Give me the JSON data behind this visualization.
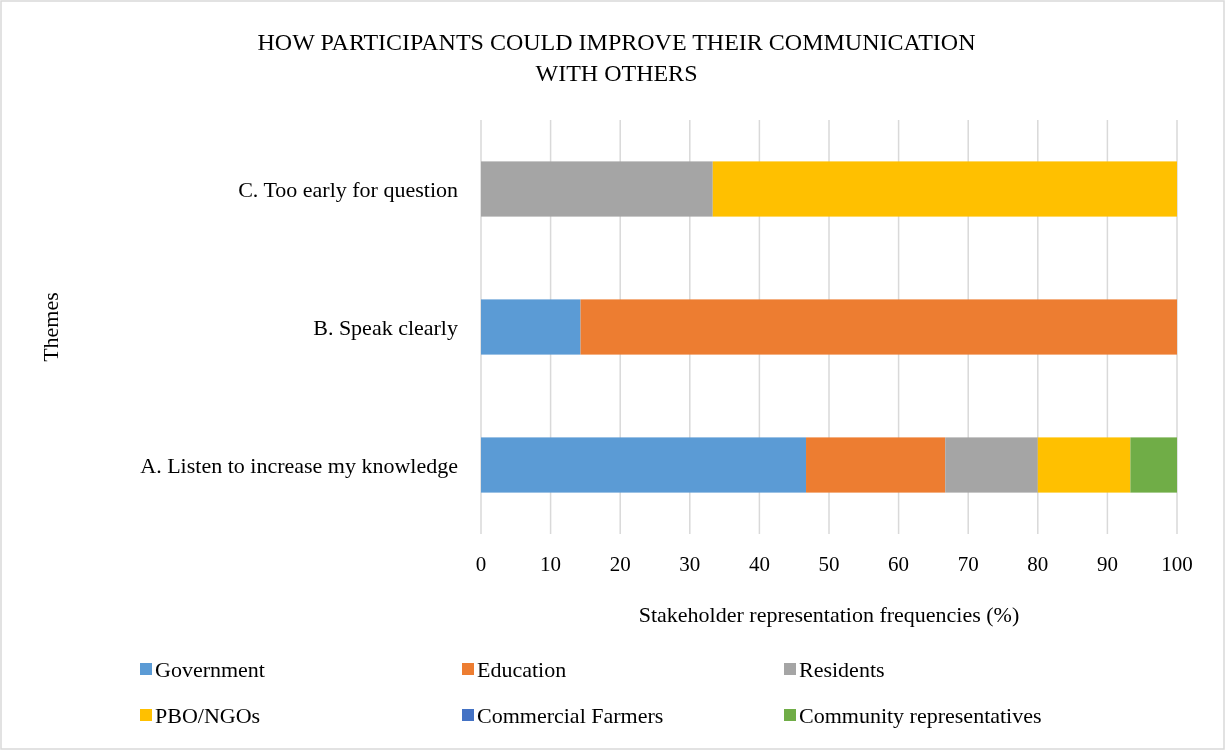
{
  "chart_data": {
    "type": "bar",
    "orientation": "horizontal",
    "stacked": true,
    "title": "HOW PARTICIPANTS COULD IMPROVE THEIR COMMUNICATION WITH OTHERS",
    "xlabel": "Stakeholder representation frequencies (%)",
    "ylabel": "Themes",
    "categories": [
      "C. Too early for question",
      "B. Speak clearly",
      "A. Listen to increase my knowledge"
    ],
    "series": [
      {
        "name": "Government",
        "color": "#5b9bd5",
        "values": [
          null,
          14.3,
          46.7
        ]
      },
      {
        "name": "Education",
        "color": "#ed7d31",
        "values": [
          null,
          85.7,
          20
        ]
      },
      {
        "name": "Residents",
        "color": "#a5a5a5",
        "values": [
          33.3,
          null,
          13.3
        ]
      },
      {
        "name": "PBO/NGOs",
        "color": "#ffc000",
        "values": [
          66.7,
          null,
          13.3
        ]
      },
      {
        "name": "Commercial Farmers",
        "color": "#4472c4",
        "values": [
          null,
          null,
          null
        ]
      },
      {
        "name": "Community representatives",
        "color": "#70ad47",
        "values": [
          null,
          null,
          6.7
        ]
      }
    ],
    "xlim": [
      0,
      100
    ],
    "xticks": [
      0,
      10,
      20,
      30,
      40,
      50,
      60,
      70,
      80,
      90,
      100
    ],
    "grid": "x",
    "legend": "bottom"
  }
}
